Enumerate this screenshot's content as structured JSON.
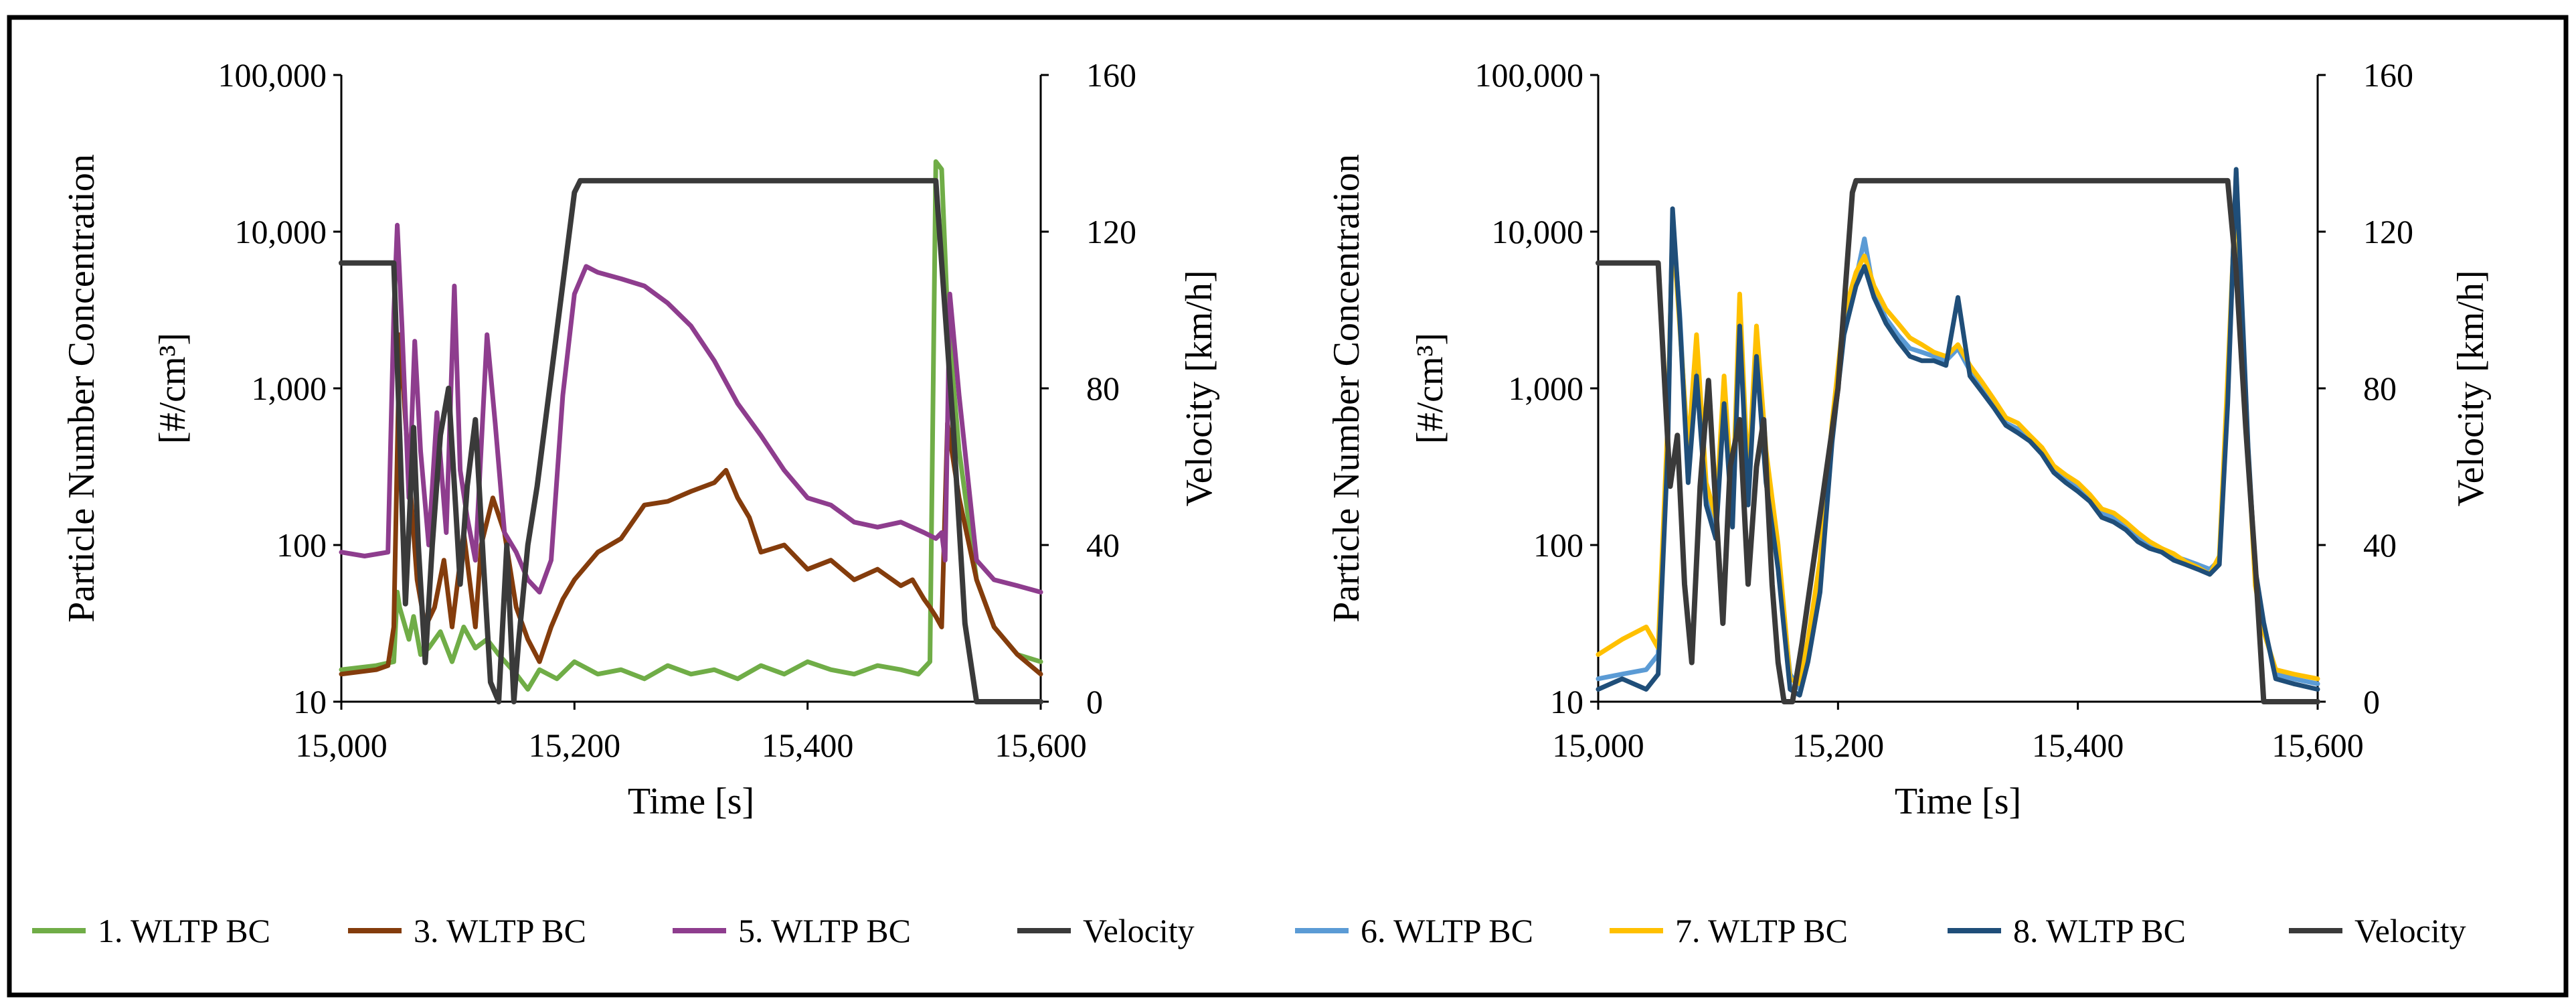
{
  "chart_data": [
    {
      "type": "line",
      "panel": "left",
      "xlabel": "Time [s]",
      "ylabel_left": "Particle Number Concentration",
      "ylabel_left_unit": "[#/cm³]",
      "ylabel_right": "Velocity [km/h]",
      "xlim": [
        15000,
        15600
      ],
      "ylim_left": [
        10,
        100000
      ],
      "yscale_left": "log",
      "ylim_right": [
        0,
        160
      ],
      "x_ticks": [
        "15,000",
        "15,200",
        "15,400",
        "15,600"
      ],
      "y_left_ticks": [
        "10",
        "100",
        "1,000",
        "10,000",
        "100,000"
      ],
      "y_right_ticks": [
        "0",
        "40",
        "80",
        "120",
        "160"
      ],
      "series": [
        {
          "name": "1. WLTP BC",
          "color": "#70ad47",
          "axis": "left",
          "x": [
            15000,
            15030,
            15045,
            15048,
            15050,
            15058,
            15062,
            15068,
            15075,
            15085,
            15095,
            15105,
            15115,
            15125,
            15135,
            15150,
            15160,
            15170,
            15185,
            15200,
            15220,
            15240,
            15260,
            15280,
            15300,
            15320,
            15340,
            15360,
            15380,
            15400,
            15420,
            15440,
            15460,
            15480,
            15495,
            15505,
            15510,
            15515,
            15520,
            15530,
            15545,
            15560,
            15580,
            15600
          ],
          "values": [
            16,
            17,
            18,
            50,
            40,
            25,
            35,
            20,
            22,
            28,
            18,
            30,
            22,
            25,
            20,
            15,
            12,
            16,
            14,
            18,
            15,
            16,
            14,
            17,
            15,
            16,
            14,
            17,
            15,
            18,
            16,
            15,
            17,
            16,
            15,
            18,
            28000,
            25000,
            3000,
            400,
            60,
            30,
            20,
            18
          ]
        },
        {
          "name": "3. WLTP BC",
          "color": "#843c0c",
          "axis": "left",
          "x": [
            15000,
            15030,
            15040,
            15045,
            15050,
            15058,
            15065,
            15072,
            15080,
            15088,
            15095,
            15100,
            15105,
            15115,
            15120,
            15130,
            15140,
            15150,
            15160,
            15170,
            15180,
            15190,
            15200,
            15220,
            15240,
            15260,
            15280,
            15300,
            15320,
            15330,
            15340,
            15350,
            15360,
            15380,
            15400,
            15420,
            15440,
            15460,
            15480,
            15490,
            15500,
            15505,
            15510,
            15515,
            15520,
            15530,
            15545,
            15560,
            15580,
            15600
          ],
          "values": [
            15,
            16,
            17,
            30,
            2200,
            300,
            60,
            30,
            40,
            80,
            30,
            60,
            120,
            30,
            100,
            200,
            120,
            40,
            25,
            18,
            30,
            45,
            60,
            90,
            110,
            180,
            190,
            220,
            250,
            300,
            200,
            150,
            90,
            100,
            70,
            80,
            60,
            70,
            55,
            60,
            45,
            40,
            35,
            30,
            600,
            200,
            60,
            30,
            20,
            15
          ]
        },
        {
          "name": "5. WLTP BC",
          "color": "#8e3d8e",
          "axis": "left",
          "x": [
            15000,
            15020,
            15040,
            15045,
            15048,
            15052,
            15058,
            15063,
            15068,
            15075,
            15082,
            15090,
            15097,
            15102,
            15108,
            15115,
            15125,
            15132,
            15140,
            15150,
            15160,
            15170,
            15180,
            15190,
            15200,
            15210,
            15220,
            15240,
            15260,
            15280,
            15300,
            15320,
            15340,
            15360,
            15380,
            15400,
            15420,
            15440,
            15460,
            15480,
            15500,
            15510,
            15515,
            15518,
            15522,
            15530,
            15545,
            15560,
            15580,
            15600
          ],
          "values": [
            90,
            85,
            90,
            3000,
            11000,
            2500,
            200,
            2000,
            400,
            100,
            700,
            120,
            4500,
            300,
            150,
            80,
            2200,
            600,
            120,
            90,
            60,
            50,
            80,
            900,
            4000,
            6000,
            5500,
            5000,
            4500,
            3500,
            2500,
            1500,
            800,
            500,
            300,
            200,
            180,
            140,
            130,
            140,
            120,
            110,
            120,
            80,
            4000,
            900,
            80,
            60,
            55,
            50
          ]
        },
        {
          "name": "Velocity",
          "color": "#3a3a3a",
          "axis": "right",
          "x": [
            15000,
            15045,
            15055,
            15062,
            15066,
            15072,
            15078,
            15085,
            15092,
            15098,
            15102,
            15108,
            15115,
            15122,
            15128,
            15135,
            15142,
            15148,
            15152,
            15160,
            15168,
            15200,
            15205,
            15505,
            15510,
            15525,
            15535,
            15545,
            15600
          ],
          "values": [
            112,
            112,
            25,
            70,
            40,
            10,
            40,
            68,
            80,
            50,
            30,
            55,
            72,
            35,
            5,
            0,
            40,
            0,
            15,
            40,
            55,
            130,
            133,
            133,
            133,
            70,
            20,
            0,
            0
          ]
        }
      ]
    },
    {
      "type": "line",
      "panel": "right",
      "xlabel": "Time [s]",
      "ylabel_left": "Particle Number Concentration",
      "ylabel_left_unit": "[#/cm³]",
      "ylabel_right": "Velocity [km/h]",
      "xlim": [
        15000,
        15600
      ],
      "ylim_left": [
        10,
        100000
      ],
      "yscale_left": "log",
      "ylim_right": [
        0,
        160
      ],
      "x_ticks": [
        "15,000",
        "15,200",
        "15,400",
        "15,600"
      ],
      "y_left_ticks": [
        "10",
        "100",
        "1,000",
        "10,000",
        "100,000"
      ],
      "y_right_ticks": [
        "0",
        "40",
        "80",
        "120",
        "160"
      ],
      "series": [
        {
          "name": "6. WLTP BC",
          "color": "#5b9bd5",
          "axis": "left",
          "x": [
            15000,
            15020,
            15040,
            15050,
            15058,
            15062,
            15068,
            15075,
            15082,
            15090,
            15098,
            15105,
            15112,
            15118,
            15125,
            15132,
            15140,
            15150,
            15160,
            15168,
            15175,
            15185,
            15195,
            15205,
            15215,
            15222,
            15230,
            15240,
            15250,
            15260,
            15270,
            15280,
            15290,
            15300,
            15310,
            15320,
            15330,
            15340,
            15350,
            15360,
            15370,
            15380,
            15390,
            15400,
            15410,
            15420,
            15430,
            15440,
            15450,
            15460,
            15470,
            15480,
            15490,
            15500,
            15510,
            15518,
            15525,
            15532,
            15538,
            15542,
            15548,
            15555,
            15565,
            15580,
            15600
          ],
          "values": [
            14,
            15,
            16,
            20,
            500,
            12000,
            3000,
            300,
            1500,
            200,
            120,
            900,
            150,
            2800,
            200,
            1800,
            300,
            80,
            15,
            12,
            20,
            60,
            500,
            2500,
            5000,
            9000,
            4000,
            2800,
            2200,
            1800,
            1700,
            1600,
            1500,
            1800,
            1300,
            1000,
            800,
            600,
            550,
            480,
            400,
            300,
            260,
            230,
            200,
            160,
            150,
            130,
            110,
            100,
            95,
            85,
            80,
            75,
            70,
            80,
            900,
            24000,
            2000,
            400,
            60,
            30,
            15,
            14,
            13
          ]
        },
        {
          "name": "7. WLTP BC",
          "color": "#ffc000",
          "axis": "left",
          "x": [
            15000,
            15020,
            15040,
            15050,
            15058,
            15062,
            15068,
            15075,
            15082,
            15090,
            15098,
            15105,
            15112,
            15118,
            15125,
            15132,
            15140,
            15150,
            15160,
            15168,
            15175,
            15185,
            15195,
            15205,
            15215,
            15222,
            15230,
            15240,
            15250,
            15260,
            15270,
            15280,
            15290,
            15300,
            15310,
            15320,
            15330,
            15340,
            15350,
            15360,
            15370,
            15380,
            15390,
            15400,
            15410,
            15420,
            15430,
            15440,
            15450,
            15460,
            15470,
            15480,
            15490,
            15500,
            15510,
            15518,
            15525,
            15532,
            15538,
            15542,
            15548,
            15555,
            15565,
            15580,
            15600
          ],
          "values": [
            20,
            25,
            30,
            22,
            600,
            11000,
            2500,
            400,
            2200,
            250,
            150,
            1200,
            180,
            4000,
            250,
            2500,
            400,
            100,
            14,
            13,
            25,
            80,
            600,
            3000,
            5500,
            7000,
            4500,
            3200,
            2600,
            2100,
            1900,
            1700,
            1600,
            1900,
            1400,
            1100,
            850,
            650,
            600,
            500,
            420,
            320,
            280,
            250,
            210,
            170,
            160,
            140,
            120,
            105,
            95,
            88,
            78,
            72,
            65,
            85,
            1200,
            20000,
            1800,
            380,
            55,
            28,
            16,
            15,
            14
          ]
        },
        {
          "name": "8. WLTP BC",
          "color": "#1f4e79",
          "axis": "left",
          "x": [
            15000,
            15020,
            15040,
            15050,
            15058,
            15062,
            15068,
            15075,
            15082,
            15090,
            15098,
            15105,
            15112,
            15118,
            15125,
            15132,
            15140,
            15150,
            15160,
            15168,
            15175,
            15185,
            15195,
            15205,
            15215,
            15222,
            15230,
            15240,
            15250,
            15260,
            15270,
            15280,
            15290,
            15300,
            15310,
            15320,
            15330,
            15340,
            15350,
            15360,
            15370,
            15380,
            15390,
            15400,
            15410,
            15420,
            15430,
            15440,
            15450,
            15460,
            15470,
            15480,
            15490,
            15500,
            15510,
            15518,
            15525,
            15532,
            15538,
            15542,
            15548,
            15555,
            15565,
            15580,
            15600
          ],
          "values": [
            12,
            14,
            12,
            15,
            400,
            14000,
            2800,
            250,
            1200,
            180,
            110,
            800,
            130,
            2500,
            180,
            1600,
            250,
            70,
            12,
            11,
            18,
            50,
            450,
            2200,
            4500,
            6000,
            3800,
            2600,
            2000,
            1600,
            1500,
            1500,
            1400,
            3800,
            1200,
            950,
            750,
            580,
            520,
            460,
            380,
            290,
            250,
            220,
            190,
            150,
            140,
            125,
            105,
            95,
            90,
            80,
            75,
            70,
            65,
            75,
            800,
            25000,
            2200,
            420,
            70,
            32,
            14,
            13,
            12
          ]
        },
        {
          "name": "Velocity",
          "color": "#3a3a3a",
          "axis": "right",
          "x": [
            15000,
            15050,
            15060,
            15066,
            15072,
            15078,
            15085,
            15092,
            15098,
            15104,
            15110,
            15118,
            15125,
            15132,
            15138,
            15145,
            15150,
            15155,
            15162,
            15170,
            15200,
            15212,
            15215,
            15520,
            15525,
            15532,
            15540,
            15548,
            15555,
            15600
          ],
          "values": [
            112,
            112,
            55,
            68,
            30,
            10,
            55,
            82,
            50,
            20,
            60,
            72,
            30,
            60,
            72,
            30,
            10,
            0,
            0,
            15,
            80,
            130,
            133,
            133,
            133,
            110,
            70,
            35,
            0,
            0
          ]
        }
      ]
    }
  ],
  "legend": [
    {
      "label": "1. WLTP BC",
      "color": "#70ad47"
    },
    {
      "label": "3. WLTP BC",
      "color": "#843c0c"
    },
    {
      "label": "5. WLTP BC",
      "color": "#8e3d8e"
    },
    {
      "label": "Velocity",
      "color": "#3a3a3a"
    },
    {
      "label": "6. WLTP BC",
      "color": "#5b9bd5"
    },
    {
      "label": "7. WLTP BC",
      "color": "#ffc000"
    },
    {
      "label": "8. WLTP BC",
      "color": "#1f4e79"
    },
    {
      "label": "Velocity",
      "color": "#3a3a3a"
    }
  ]
}
